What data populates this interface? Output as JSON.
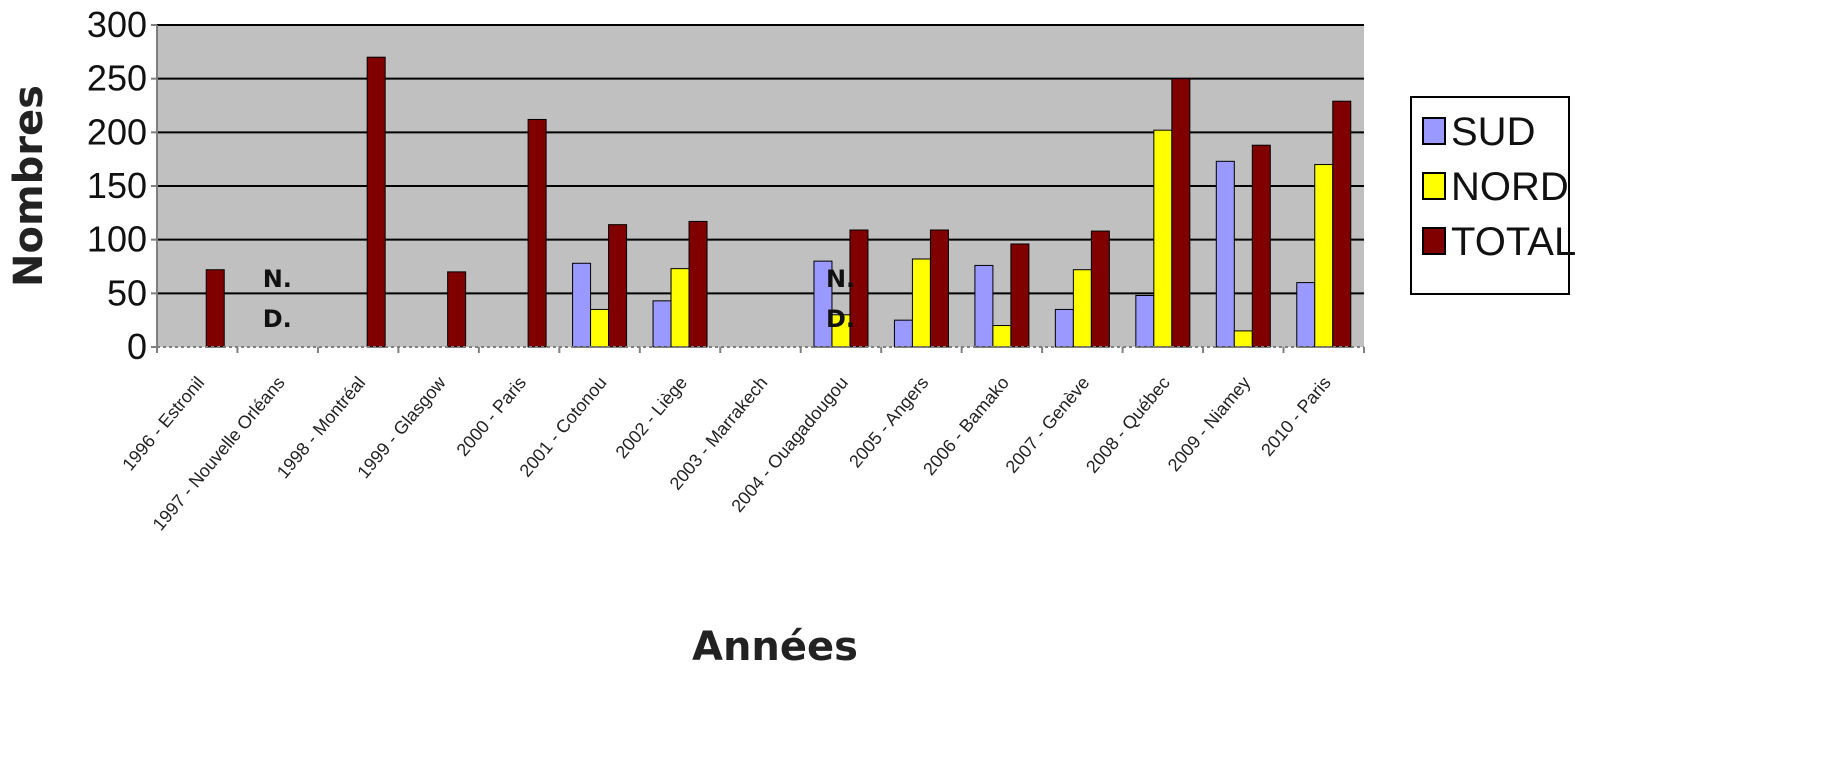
{
  "chart_data": {
    "type": "bar",
    "title": "",
    "xlabel": "Années",
    "ylabel": "Nombres",
    "ylim": [
      0,
      300
    ],
    "yticks": [
      0,
      50,
      100,
      150,
      200,
      250,
      300
    ],
    "grid": true,
    "legend_position": "right",
    "categories": [
      "1996 - Estronil",
      "1997 - Nouvelle Orléans",
      "1998 - Montréal",
      "1999 - Glasgow",
      "2000 - Paris",
      "2001 - Cotonou",
      "2002 - Liège",
      "2003 - Marrakech",
      "2004 - Ouagadougou",
      "2005 - Angers",
      "2006 - Bamako",
      "2007 - Genève",
      "2008 - Québec",
      "2009 - Niamey",
      "2010 - Paris"
    ],
    "series": [
      {
        "name": "SUD",
        "color": "#9999ff",
        "values": [
          null,
          null,
          null,
          null,
          null,
          78,
          43,
          null,
          80,
          25,
          76,
          35,
          48,
          173,
          60
        ]
      },
      {
        "name": "NORD",
        "color": "#ffff00",
        "values": [
          null,
          null,
          null,
          null,
          null,
          35,
          73,
          null,
          30,
          82,
          20,
          72,
          202,
          15,
          170
        ]
      },
      {
        "name": "TOTAL",
        "color": "#800000",
        "values": [
          72,
          null,
          270,
          70,
          212,
          114,
          117,
          null,
          109,
          109,
          96,
          108,
          250,
          188,
          229
        ]
      }
    ],
    "annotations": [
      {
        "category": "1997 - Nouvelle Orléans",
        "lines": [
          "N.",
          "D."
        ]
      },
      {
        "category": "2004 - Ouagadougou",
        "lines": [
          "N.",
          "D."
        ]
      }
    ]
  }
}
